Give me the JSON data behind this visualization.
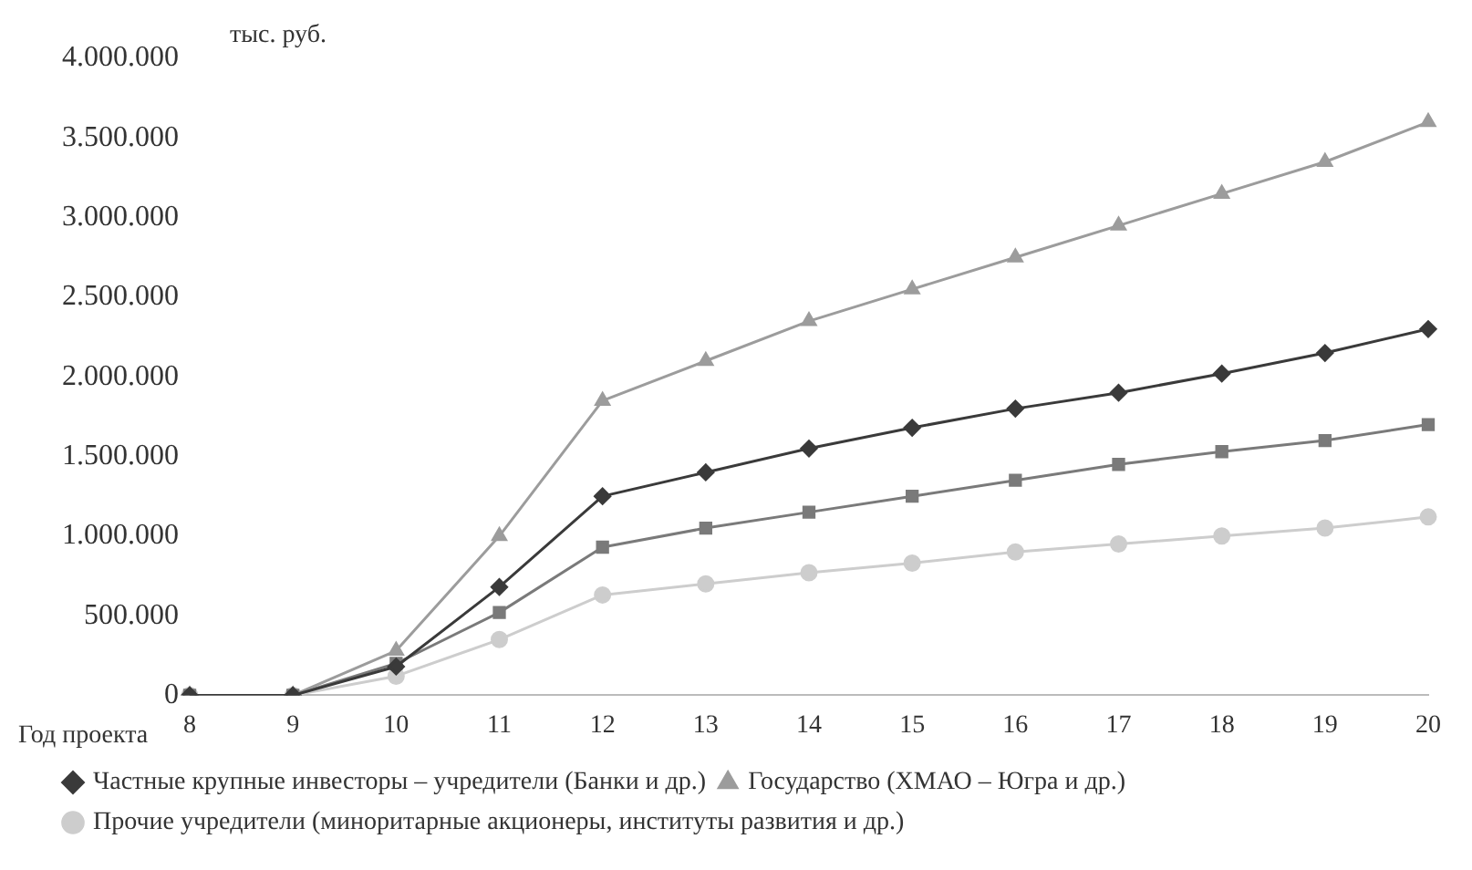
{
  "chart_data": {
    "type": "line",
    "ylabel": "тыс. руб.",
    "xlabel": "Год проекта",
    "categories": [
      "8",
      "9",
      "10",
      "11",
      "12",
      "13",
      "14",
      "15",
      "16",
      "17",
      "18",
      "19",
      "20"
    ],
    "series": [
      {
        "name": "Частные крупные инвесторы – учредители (Банки и др.)",
        "color": "#3a3a3a",
        "marker": "diamond",
        "values": [
          0,
          0,
          180000,
          680000,
          1250000,
          1400000,
          1550000,
          1680000,
          1800000,
          1900000,
          2020000,
          2150000,
          2300000
        ]
      },
      {
        "name": "Государство (ХМАО – Югра и др.)",
        "color": "#9c9c9c",
        "marker": "triangle",
        "values": [
          0,
          0,
          280000,
          1000000,
          1850000,
          2100000,
          2350000,
          2550000,
          2750000,
          2950000,
          3150000,
          3350000,
          3600000
        ]
      },
      {
        "color": "#7a7a7a",
        "marker": "square",
        "values": [
          0,
          0,
          200000,
          520000,
          930000,
          1050000,
          1150000,
          1250000,
          1350000,
          1450000,
          1530000,
          1600000,
          1700000
        ]
      },
      {
        "name": "Прочие учредители (миноритарные акционеры, институты развития и др.)",
        "color": "#cdcdcd",
        "marker": "circle",
        "values": [
          0,
          0,
          120000,
          350000,
          630000,
          700000,
          770000,
          830000,
          900000,
          950000,
          1000000,
          1050000,
          1120000
        ]
      }
    ],
    "ylim": [
      0,
      4000000
    ],
    "yticks": [
      {
        "value": 0,
        "label": "0"
      },
      {
        "value": 500000,
        "label": "500.000"
      },
      {
        "value": 1000000,
        "label": "1.000.000"
      },
      {
        "value": 1500000,
        "label": "1.500.000"
      },
      {
        "value": 2000000,
        "label": "2.000.000"
      },
      {
        "value": 2500000,
        "label": "2.500.000"
      },
      {
        "value": 3000000,
        "label": "3.000.000"
      },
      {
        "value": 3500000,
        "label": "3.500.000"
      },
      {
        "value": 4000000,
        "label": "4.000.000"
      }
    ],
    "grid": false,
    "legend": "bottom",
    "line_style": "solid"
  }
}
